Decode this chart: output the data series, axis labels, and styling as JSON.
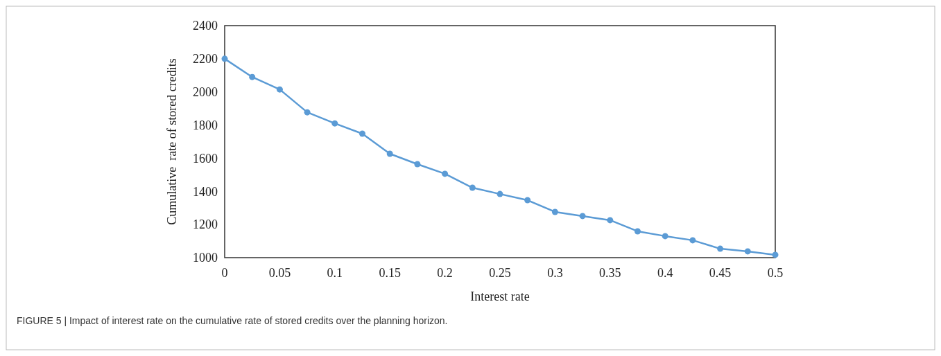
{
  "chart_data": {
    "type": "line",
    "xlabel": "Interest rate",
    "ylabel": "Cumulative  rate of stored credits",
    "annotations": [
      "FIGURE 5 | Impact of interest rate on the cumulative rate of stored credits over the planning horizon."
    ],
    "x": [
      0,
      0.025,
      0.05,
      0.075,
      0.1,
      0.125,
      0.15,
      0.175,
      0.2,
      0.225,
      0.25,
      0.275,
      0.3,
      0.325,
      0.35,
      0.375,
      0.4,
      0.425,
      0.45,
      0.475,
      0.5
    ],
    "series": [
      {
        "color": "#5b9bd5",
        "values": [
          2200,
          2090,
          2015,
          1877,
          1810,
          1748,
          1627,
          1564,
          1506,
          1422,
          1384,
          1347,
          1276,
          1251,
          1226,
          1159,
          1130,
          1105,
          1054,
          1038,
          1017
        ]
      }
    ],
    "xlim": [
      0,
      0.5
    ],
    "xticks": [
      0,
      0.05,
      0.1,
      0.15,
      0.2,
      0.25,
      0.3,
      0.35,
      0.4,
      0.45,
      0.5
    ],
    "ylim": [
      1000,
      2400
    ],
    "yticks": [
      1000,
      1200,
      1400,
      1600,
      1800,
      2000,
      2200,
      2400
    ],
    "grid": false,
    "marker": "circle",
    "line_style": "solid"
  }
}
